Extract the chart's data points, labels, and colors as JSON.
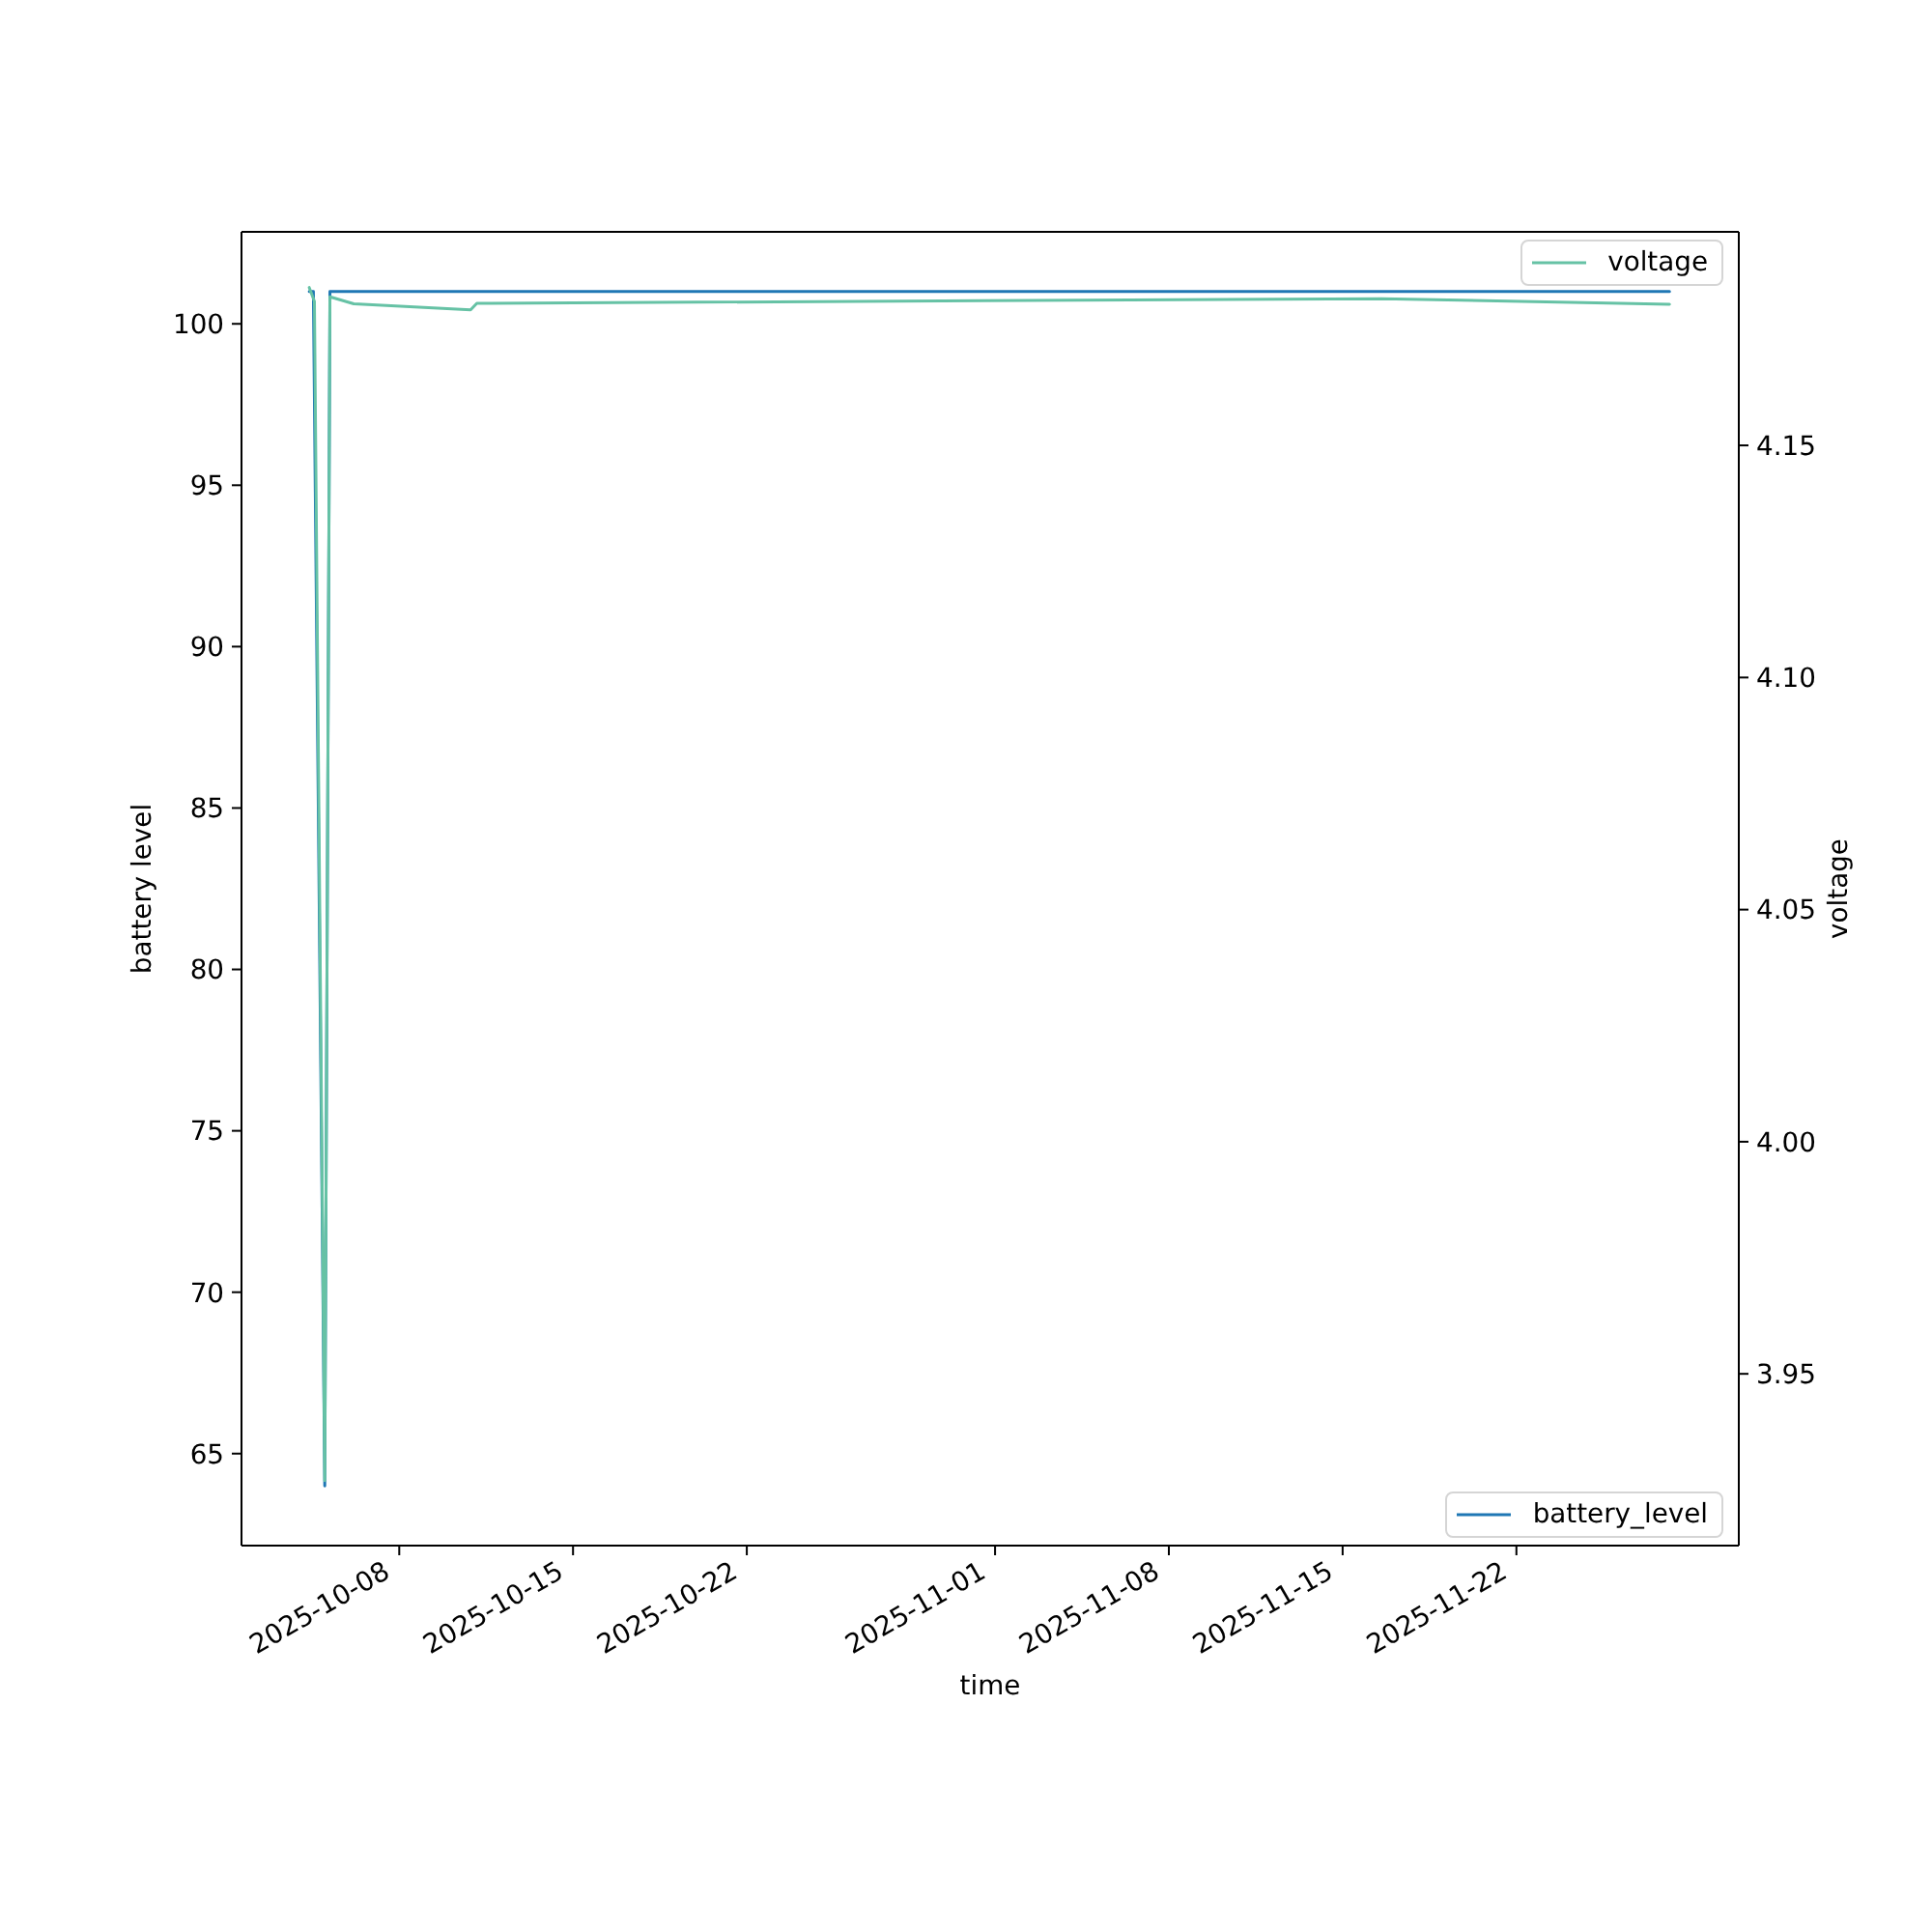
{
  "chart_data": {
    "type": "line",
    "xlabel": "time",
    "ylabel": "battery level",
    "y2label": "voltage",
    "xlim": [
      "2025-10-01T15:30",
      "2025-11-30T23:00"
    ],
    "xticks": [
      "2025-10-08",
      "2025-10-15",
      "2025-10-22",
      "2025-11-01",
      "2025-11-08",
      "2025-11-15",
      "2025-11-22"
    ],
    "ylim": [
      62.15,
      102.85
    ],
    "yticks": [
      65,
      70,
      75,
      80,
      85,
      90,
      95,
      100
    ],
    "y2lim": [
      3.913,
      4.196
    ],
    "y2ticks": [
      3.95,
      {
        "value": 4,
        "label": "4.00"
      },
      4.05,
      {
        "value": 4.1,
        "label": "4.10"
      },
      4.15
    ],
    "legend": [
      "bottom right",
      "top right"
    ],
    "series": [
      {
        "name": "battery_level",
        "color": "#1f77b4",
        "x": [
          "2025-10-04T09:00",
          "2025-10-04T13:00",
          "2025-10-05T00:00",
          "2025-10-05T05:00",
          "2025-11-28T04:00"
        ],
        "values": [
          101,
          101,
          64,
          101,
          101
        ]
      },
      {
        "name": "voltage",
        "color": "#66c2a5",
        "axis": "y2",
        "x": [
          "2025-10-04T09:00",
          "2025-10-04T14:00",
          "2025-10-05T00:00",
          "2025-10-05T05:00",
          "2025-10-06T04:00",
          "2025-10-10T21:00",
          "2025-10-11T03:00",
          "2025-11-16T14:00",
          "2025-11-28T04:00"
        ],
        "values": [
          4.184,
          4.181,
          3.927,
          4.182,
          4.1805,
          4.1792,
          4.1806,
          4.1816,
          4.1804
        ]
      }
    ]
  }
}
